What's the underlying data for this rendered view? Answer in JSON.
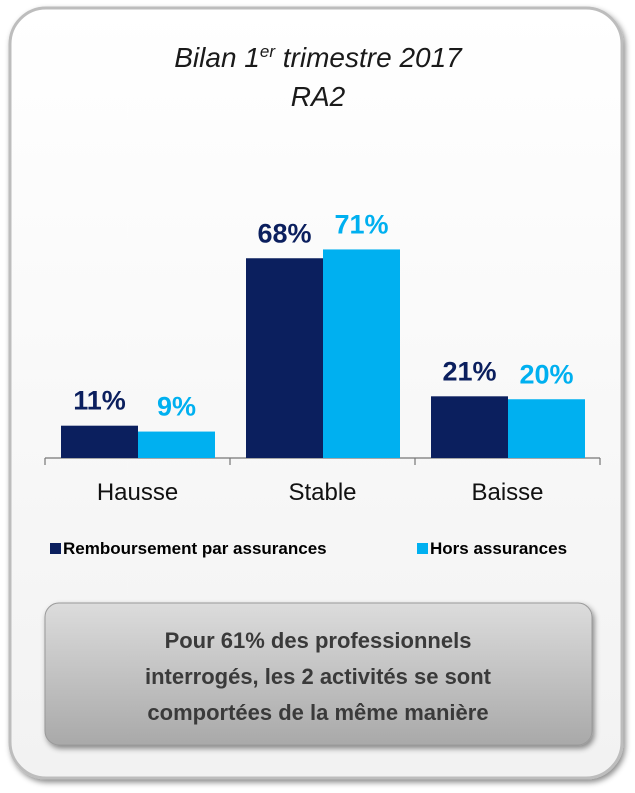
{
  "chart_data": {
    "type": "bar",
    "title": [
      "Bilan 1",
      "er",
      " trimestre 2017",
      "RA2"
    ],
    "categories": [
      "Hausse",
      "Stable",
      "Baisse"
    ],
    "series": [
      {
        "name": "Remboursement par assurances",
        "color": "#0b1f5e",
        "values": [
          11,
          68,
          21
        ],
        "value_labels": [
          "11%",
          "68%",
          "21%"
        ]
      },
      {
        "name": "Hors assurances",
        "color": "#00b0f0",
        "values": [
          9,
          71,
          20
        ],
        "value_labels": [
          "9%",
          "71%",
          "20%"
        ]
      }
    ],
    "ylim": [
      0,
      80
    ],
    "annotation": [
      "Pour 61% des professionnels",
      "interrogés, les 2 activités se sont",
      "comportées de la même manière"
    ]
  }
}
